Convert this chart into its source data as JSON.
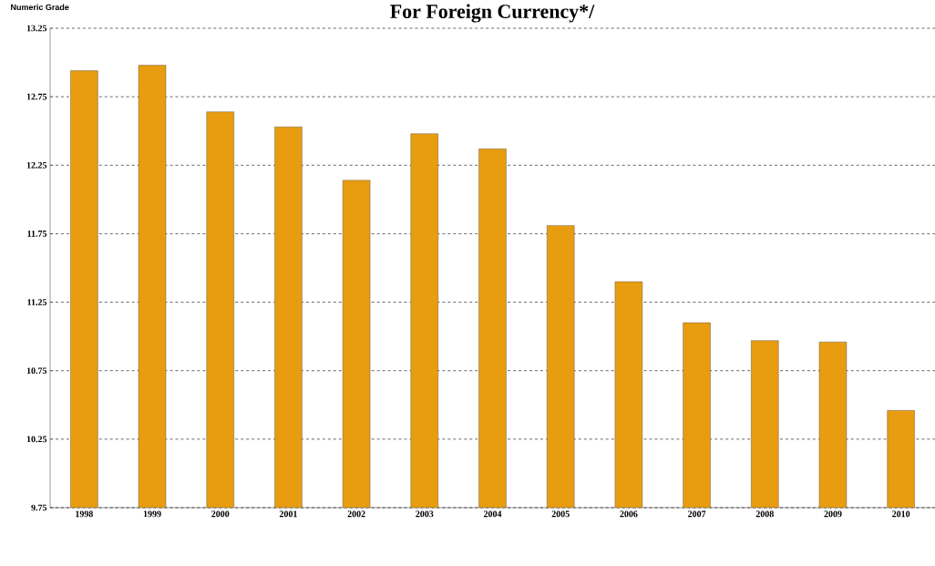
{
  "chart_data": {
    "type": "bar",
    "title": "For Foreign Currency*/",
    "ylabel": "Numeric Grade",
    "categories": [
      "1998",
      "1999",
      "2000",
      "2001",
      "2002",
      "2003",
      "2004",
      "2005",
      "2006",
      "2007",
      "2008",
      "2009",
      "2010"
    ],
    "values": [
      12.94,
      12.98,
      12.64,
      12.53,
      12.14,
      12.48,
      12.37,
      11.81,
      11.4,
      11.1,
      10.97,
      10.96,
      10.46
    ],
    "color": "#e89c10",
    "ylim": [
      9.75,
      13.25
    ],
    "yticks": [
      9.75,
      10.25,
      10.75,
      11.25,
      11.75,
      12.25,
      12.75,
      13.25
    ],
    "grid": "y"
  }
}
